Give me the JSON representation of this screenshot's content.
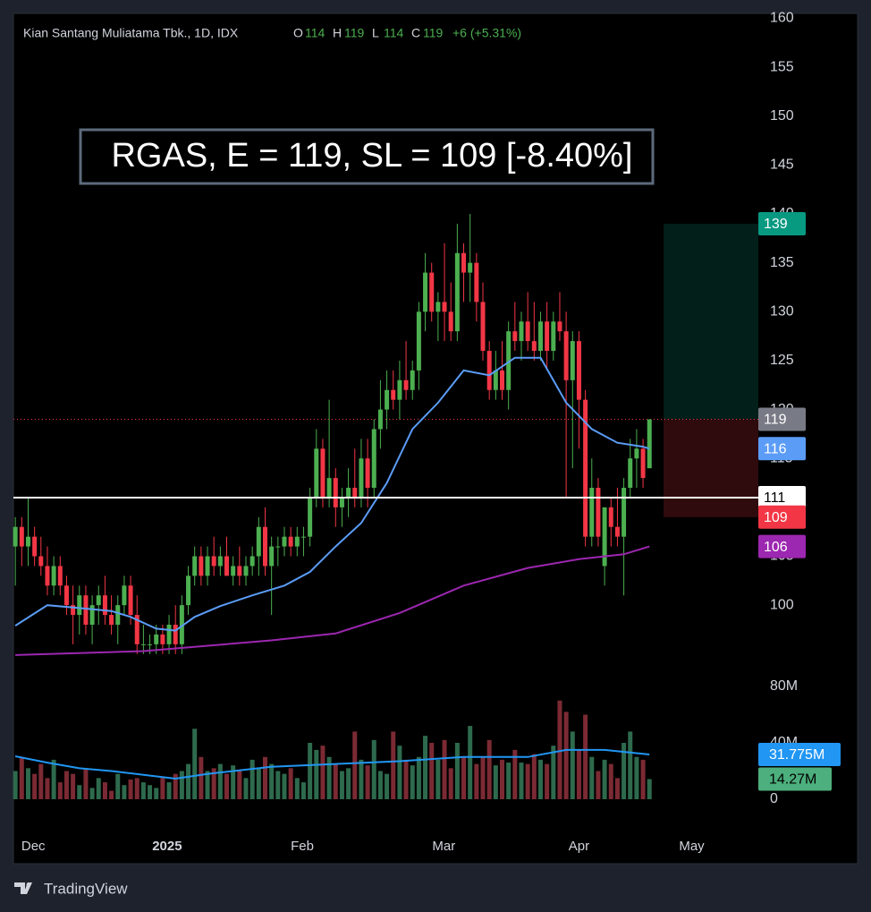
{
  "chart_data": {
    "type": "candlestick",
    "title": "Kian Santang Muliatama Tbk., 1D, IDX",
    "ohlc_letters": [
      "O",
      "H",
      "L",
      "C"
    ],
    "change": "+6 (+5.31%)",
    "annotation": "RGAS, E = 119, SL = 109 [-8.40%]",
    "xlim": [
      -0.3,
      116
    ],
    "xticks": [
      {
        "value": 2.8,
        "label": "Dec"
      },
      {
        "value": 23.7,
        "label": "2025"
      },
      {
        "value": 44.8,
        "label": "Feb"
      },
      {
        "value": 66.9,
        "label": "Mar"
      },
      {
        "value": 88,
        "label": "Apr"
      },
      {
        "value": 105.6,
        "label": "May"
      }
    ],
    "ylim": [
      93.7,
      160.5
    ],
    "yticks": [
      100,
      105,
      110,
      115,
      120,
      125,
      130,
      135,
      140,
      145,
      150,
      155,
      160
    ],
    "grid": false,
    "up_color": "#4caf50",
    "down_color": "#f23645",
    "open": [
      106,
      108,
      106,
      107,
      105,
      104,
      102,
      104,
      102,
      100,
      99,
      101,
      98,
      100,
      101,
      99,
      98,
      100,
      102,
      99,
      96,
      96,
      96,
      97,
      96,
      98,
      96,
      100,
      103,
      105,
      103,
      105,
      104,
      105,
      103,
      104,
      103,
      104,
      105,
      108,
      104,
      106,
      106,
      107,
      106,
      107,
      107,
      111,
      116,
      111,
      113,
      110,
      111,
      112,
      111,
      115,
      112,
      118,
      120,
      122,
      121,
      123,
      122,
      124,
      130,
      134,
      130,
      131,
      130,
      128,
      136,
      134,
      135,
      131,
      126,
      122,
      124,
      122,
      128,
      127,
      129,
      127,
      126,
      129,
      126,
      129,
      128,
      123,
      127,
      121,
      107,
      112,
      104,
      110,
      108,
      107,
      112,
      115,
      116,
      114
    ],
    "high": [
      109,
      109,
      111,
      108,
      107,
      106,
      105,
      105,
      103,
      102,
      102,
      102,
      101,
      102,
      103,
      101,
      101,
      103,
      103,
      101,
      98,
      97,
      98,
      98,
      99,
      100,
      101,
      104,
      106,
      106,
      106,
      107,
      106,
      107,
      105,
      106,
      105,
      106,
      109,
      110,
      107,
      107,
      108,
      108,
      108,
      108,
      112,
      118,
      117,
      121,
      114,
      112,
      114,
      116,
      117,
      117,
      119,
      123,
      124,
      124,
      125,
      127,
      125,
      131,
      136,
      135,
      132,
      137,
      133,
      139,
      137,
      140,
      136,
      133,
      127,
      126,
      127,
      129,
      131,
      130,
      132,
      131,
      130,
      131,
      130,
      132,
      130,
      128,
      128,
      122,
      115,
      113,
      110,
      111,
      112,
      113,
      117,
      118,
      117,
      119
    ],
    "low": [
      102,
      104,
      104,
      104,
      103,
      101,
      101,
      101,
      99,
      96,
      97,
      97,
      96,
      98,
      98,
      97,
      96,
      99,
      98,
      95,
      95,
      95,
      95,
      95,
      95,
      95,
      95,
      99,
      102,
      102,
      102,
      103,
      103,
      103,
      102,
      102,
      102,
      103,
      103,
      103,
      99,
      104,
      105,
      105,
      105,
      105,
      106,
      110,
      110,
      110,
      108,
      108,
      109,
      110,
      110,
      110,
      111,
      116,
      118,
      120,
      119,
      121,
      121,
      122,
      128,
      129,
      127,
      127,
      127,
      127,
      131,
      131,
      129,
      125,
      121,
      121,
      121,
      120,
      126,
      125,
      126,
      125,
      125,
      124,
      125,
      127,
      111,
      114,
      116,
      106,
      106,
      106,
      102,
      106,
      106,
      101,
      111,
      112,
      112,
      114
    ],
    "close": [
      108,
      106,
      107,
      105,
      104,
      102,
      104,
      102,
      100,
      99,
      101,
      98,
      100,
      101,
      99,
      98,
      100,
      102,
      99,
      96,
      96,
      96,
      97,
      96,
      98,
      96,
      100,
      103,
      105,
      103,
      105,
      104,
      105,
      103,
      104,
      103,
      104,
      105,
      108,
      104,
      106,
      106,
      107,
      106,
      107,
      107,
      111,
      116,
      111,
      113,
      110,
      111,
      112,
      111,
      115,
      112,
      118,
      120,
      122,
      121,
      123,
      122,
      124,
      130,
      134,
      130,
      131,
      130,
      128,
      136,
      134,
      135,
      131,
      126,
      122,
      124,
      122,
      128,
      127,
      129,
      127,
      126,
      129,
      126,
      129,
      128,
      123,
      127,
      121,
      107,
      112,
      107,
      110,
      108,
      107,
      112,
      115,
      116,
      113,
      119
    ],
    "ma_fast": {
      "color": "#5b9cf6",
      "x": [
        0,
        5,
        10,
        15,
        18,
        22,
        25,
        28,
        32,
        37,
        42,
        46,
        50,
        54,
        58,
        62,
        66,
        70,
        74,
        78,
        82,
        86,
        90,
        94,
        98,
        99
      ],
      "values": [
        97.9,
        100,
        99.7,
        99.4,
        98.8,
        97.6,
        97.4,
        98.8,
        99.9,
        101,
        102,
        103.4,
        106,
        108.4,
        112.5,
        118,
        120.7,
        124,
        123.5,
        125.3,
        125.3,
        120.7,
        118,
        116.6,
        116.2,
        116
      ]
    },
    "ma_slow": {
      "color": "#9c27b0",
      "x": [
        0,
        20,
        40,
        50,
        60,
        70,
        80,
        88,
        95,
        99
      ],
      "values": [
        94.9,
        95.3,
        96.4,
        97.1,
        99.2,
        102,
        103.8,
        104.7,
        105.2,
        106
      ]
    },
    "hline": {
      "value": 111,
      "color": "#ffffff"
    },
    "position": {
      "x_start": 101.2,
      "entry": 119,
      "target": 139,
      "stop": 109,
      "target_color": "#089981",
      "stop_color": "#f23645"
    },
    "volume": {
      "ylim": [
        0,
        90.8
      ],
      "yticks": [
        0,
        {
          "value": 40,
          "label": "40M"
        },
        {
          "value": 80,
          "label": "80M"
        }
      ],
      "up_color": "#2e6a4d",
      "down_color": "#7b2a33",
      "values": [
        20,
        30,
        22,
        18,
        25,
        15,
        28,
        12,
        20,
        18,
        10,
        22,
        8,
        15,
        12,
        6,
        18,
        10,
        14,
        15,
        12,
        10,
        8,
        16,
        12,
        18,
        20,
        25,
        50,
        30,
        20,
        22,
        25,
        18,
        24,
        20,
        15,
        28,
        22,
        30,
        25,
        20,
        18,
        22,
        15,
        12,
        40,
        35,
        38,
        30,
        25,
        20,
        22,
        48,
        28,
        24,
        42,
        20,
        18,
        48,
        38,
        28,
        24,
        30,
        45,
        40,
        28,
        42,
        22,
        40,
        30,
        52,
        25,
        30,
        42,
        24,
        28,
        26,
        35,
        26,
        25,
        32,
        28,
        25,
        38,
        70,
        62,
        48,
        35,
        60,
        30,
        20,
        28,
        25,
        15,
        40,
        48,
        30,
        28,
        14.27
      ],
      "last_label": "14.27M",
      "label_color": "#4caf7d",
      "ma": {
        "color": "#2196f3",
        "x": [
          0,
          5,
          10,
          15,
          25,
          30,
          40,
          50,
          60,
          70,
          80,
          86,
          92,
          99
        ],
        "values": [
          30.5,
          26,
          22,
          20,
          14.6,
          18,
          23,
          25,
          27,
          30,
          30,
          35,
          35,
          31.775
        ],
        "last_label": "31.775M"
      }
    }
  },
  "branding": "TradingView"
}
